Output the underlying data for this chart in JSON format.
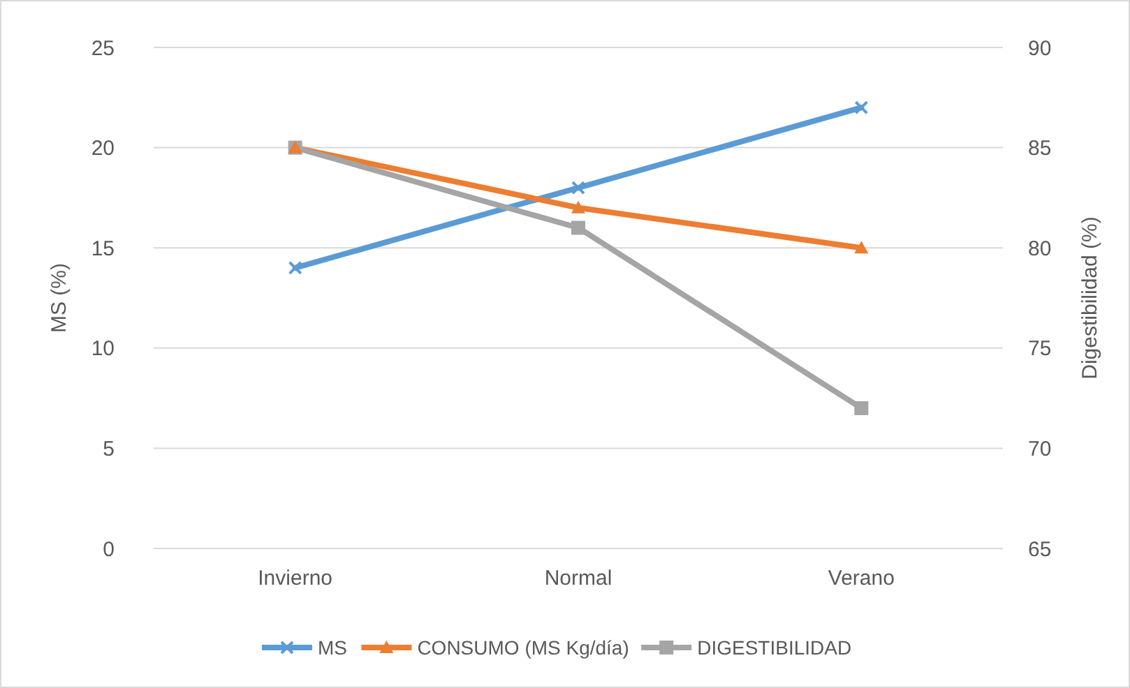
{
  "chart_data": {
    "type": "line",
    "ylabel": "MS (%)",
    "y2label": "Digestibilidad (%)",
    "categories": [
      "Invierno",
      "Normal",
      "Verano"
    ],
    "series": [
      {
        "name": "MS",
        "color": "#5b9bd5",
        "marker": "cross",
        "values": [
          14,
          18,
          22
        ]
      },
      {
        "name": "CONSUMO (MS Kg/día)",
        "color": "#ed7d31",
        "marker": "triangle",
        "values": [
          20,
          17,
          15
        ]
      },
      {
        "name": "DIGESTIBILIDAD",
        "color": "#a5a5a5",
        "marker": "square",
        "axis": "y2",
        "values": [
          85,
          81,
          72
        ]
      }
    ],
    "ylim": [
      0,
      25
    ],
    "yticks": [
      0,
      5,
      10,
      15,
      20,
      25
    ],
    "y2lim": [
      65,
      90
    ],
    "y2ticks": [
      65,
      70,
      75,
      80,
      85,
      90
    ],
    "grid": "y",
    "legend": "bottom",
    "line_style": "solid"
  }
}
